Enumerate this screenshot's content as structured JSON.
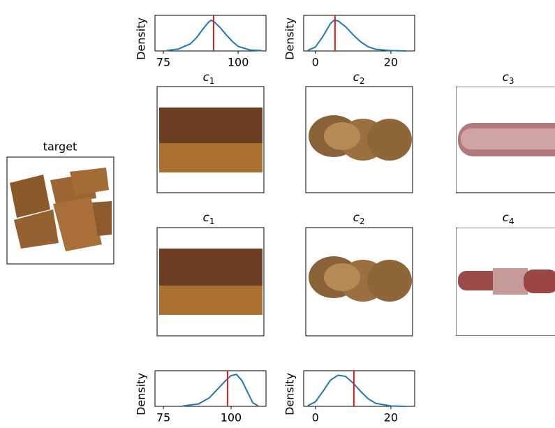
{
  "figure": {
    "target_label": "target",
    "rows": [
      [
        {
          "base": "c",
          "sub": "1"
        },
        {
          "base": "c",
          "sub": "2"
        },
        {
          "base": "c",
          "sub": "3"
        }
      ],
      [
        {
          "base": "c",
          "sub": "1"
        },
        {
          "base": "c",
          "sub": "2"
        },
        {
          "base": "c",
          "sub": "4"
        }
      ]
    ]
  },
  "chart_data": [
    {
      "type": "line",
      "ylabel": "Density",
      "color": "#1f77b4",
      "x": [
        76,
        80,
        84,
        86,
        88,
        90,
        91,
        92,
        94,
        96,
        98,
        100,
        104,
        108
      ],
      "values": [
        0.001,
        0.006,
        0.022,
        0.04,
        0.065,
        0.088,
        0.095,
        0.09,
        0.072,
        0.05,
        0.03,
        0.014,
        0.003,
        0.001
      ],
      "xlim": [
        72.2,
        109.3
      ],
      "xticks": [
        75,
        100
      ],
      "ylim": [
        0,
        0.11
      ],
      "reference_line": {
        "value": 91.8,
        "color": "#e41a1c"
      }
    },
    {
      "type": "line",
      "ylabel": "Density",
      "color": "#1f77b4",
      "x": [
        -2,
        0,
        2,
        4,
        5,
        6,
        8,
        10,
        12,
        14,
        16,
        20,
        24
      ],
      "values": [
        0.002,
        0.012,
        0.045,
        0.085,
        0.095,
        0.093,
        0.075,
        0.05,
        0.028,
        0.013,
        0.005,
        0.001,
        0
      ],
      "xlim": [
        -3.1,
        26.3
      ],
      "xticks": [
        0,
        20
      ],
      "ylim": [
        0,
        0.11
      ],
      "reference_line": {
        "value": 5.2,
        "color": "#e41a1c"
      }
    },
    {
      "type": "line",
      "ylabel": "Density",
      "color": "#1f77b4",
      "x": [
        82,
        88,
        92,
        95,
        98,
        100,
        102,
        104,
        106,
        108,
        110
      ],
      "values": [
        0.001,
        0.01,
        0.035,
        0.07,
        0.105,
        0.125,
        0.13,
        0.105,
        0.06,
        0.015,
        0.002
      ],
      "xlim": [
        71.9,
        112.9
      ],
      "xticks": [
        75,
        100
      ],
      "ylim": [
        0,
        0.145
      ],
      "reference_line": {
        "value": 98.7,
        "color": "#e41a1c"
      }
    },
    {
      "type": "line",
      "ylabel": "Density",
      "color": "#1f77b4",
      "x": [
        -2,
        0,
        2,
        4,
        6,
        8,
        10,
        12,
        14,
        16,
        20,
        24
      ],
      "values": [
        0.002,
        0.012,
        0.04,
        0.07,
        0.083,
        0.08,
        0.062,
        0.04,
        0.02,
        0.008,
        0.001,
        0
      ],
      "xlim": [
        -3.1,
        26.3
      ],
      "xticks": [
        0,
        20
      ],
      "ylim": [
        0,
        0.095
      ],
      "reference_line": {
        "value": 10.2,
        "color": "#e41a1c"
      }
    }
  ]
}
